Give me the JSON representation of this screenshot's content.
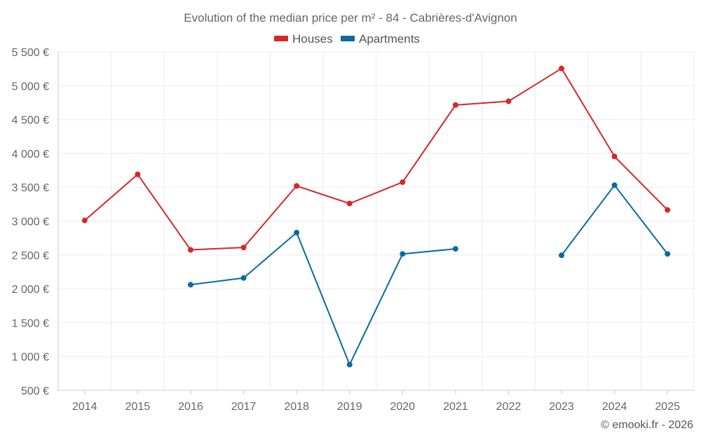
{
  "chart_data": {
    "type": "line",
    "title": "Evolution of the median price per m² - 84 - Cabrières-d'Avignon",
    "categories": [
      "2014",
      "2015",
      "2016",
      "2017",
      "2018",
      "2019",
      "2020",
      "2021",
      "2022",
      "2023",
      "2024",
      "2025"
    ],
    "y_ticks": [
      "500 €",
      "1 000 €",
      "1 500 €",
      "2 000 €",
      "2 500 €",
      "3 000 €",
      "3 500 €",
      "4 000 €",
      "4 500 €",
      "5 000 €",
      "5 500 €"
    ],
    "ylim": [
      500,
      5500
    ],
    "ystep": 500,
    "grid": true,
    "legend_position": "top-center",
    "series": [
      {
        "name": "Houses",
        "color": "#d62728",
        "values": [
          3010,
          3690,
          2575,
          2610,
          3520,
          3260,
          3575,
          4715,
          4770,
          5255,
          3955,
          3165
        ]
      },
      {
        "name": "Apartments",
        "color": "#0a6aa1",
        "values": [
          null,
          null,
          2060,
          2160,
          2830,
          880,
          2515,
          2590,
          null,
          2495,
          3530,
          2515
        ]
      }
    ]
  },
  "credit": "© emooki.fr - 2026"
}
